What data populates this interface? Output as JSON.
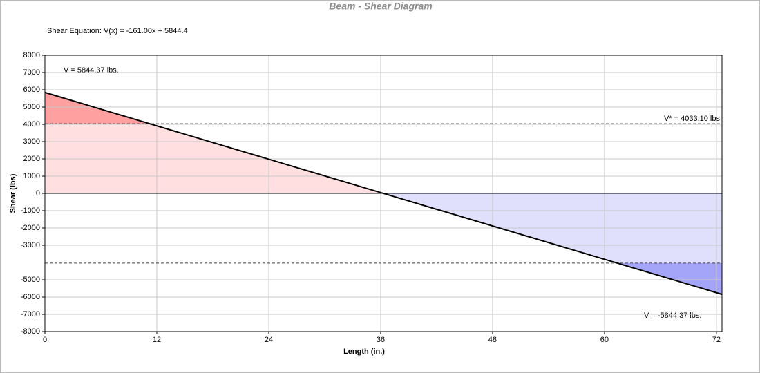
{
  "chart_data": {
    "type": "line",
    "title": "Beam - Shear Diagram",
    "subtitle": "Shear Equation:  V(x) = -161.00x + 5844.4",
    "x_label": "Length (in.)",
    "y_label": "Shear (lbs)",
    "x": [
      0,
      72.6
    ],
    "series": [
      {
        "name": "Shear",
        "color": "#000000",
        "values": [
          5844.37,
          -5844.37
        ]
      }
    ],
    "limits": [
      4033.1,
      -4033.1
    ],
    "annotations": [
      "V = 5844.37 lbs.",
      "V* = 4033.10 lbs",
      "V = -5844.37 lbs."
    ],
    "xlim": [
      0,
      72.6
    ],
    "xticks": [
      0,
      12,
      24,
      36,
      48,
      60,
      72
    ],
    "ylim": [
      -8000,
      8000
    ],
    "yticks": [
      -8000,
      -7000,
      -6000,
      -5000,
      -3000,
      -2000,
      -1000,
      0,
      1000,
      2000,
      3000,
      4000,
      5000,
      6000,
      7000,
      8000
    ],
    "grid": true,
    "fill_colors": {
      "positive_over": "#ffa0a0",
      "positive": "#ffdfdf",
      "negative": "#e0e0fc",
      "negative_over": "#a4a4f8"
    }
  }
}
